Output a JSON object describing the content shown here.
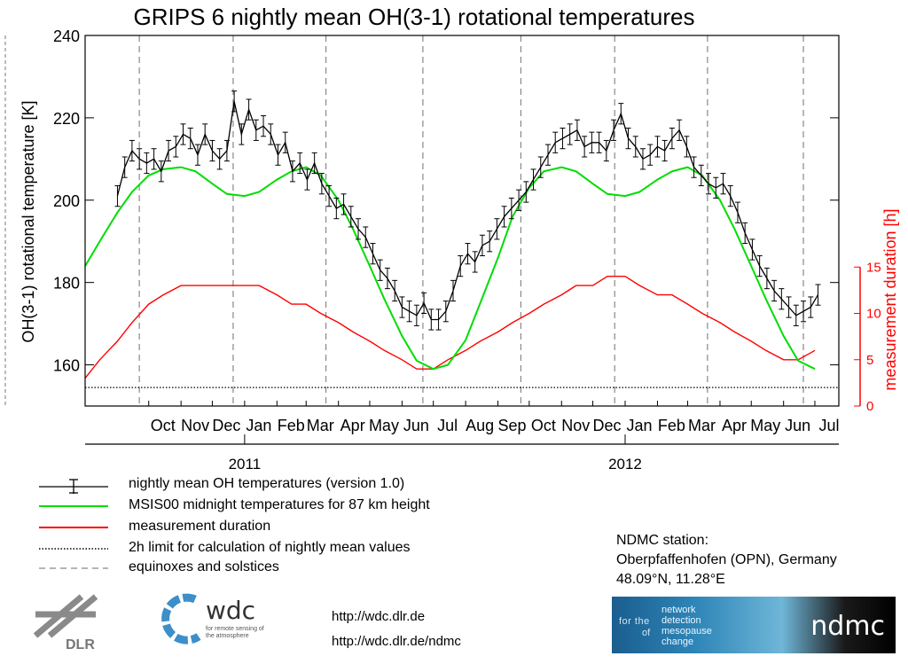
{
  "chart_data": {
    "type": "line",
    "title": "GRIPS 6 nightly mean OH(3-1) rotational temperatures",
    "ylabel_left": "OH(3-1) rotational temperature [K]",
    "ylabel_right": "measurement duration [h]",
    "ylim_left": [
      150,
      240
    ],
    "yticks_left": [
      "160",
      "180",
      "200",
      "220",
      "240"
    ],
    "ylim_right": [
      0,
      40
    ],
    "yticks_right": [
      "0",
      "5",
      "10",
      "15"
    ],
    "months": [
      "Oct",
      "Nov",
      "Dec",
      "Jan",
      "Feb",
      "Mar",
      "Apr",
      "May",
      "Jun",
      "Jul",
      "Aug",
      "Sep",
      "Oct",
      "Nov",
      "Dec",
      "Jan",
      "Feb",
      "Mar",
      "Apr",
      "May",
      "Jun",
      "Jul"
    ],
    "years": [
      "2011",
      "2012"
    ],
    "equinox_solstice_months": [
      "Sep",
      "Dec",
      "Mar",
      "Jun",
      "Sep",
      "Dec",
      "Mar",
      "Jun"
    ],
    "two_hour_limit": 2,
    "series": [
      {
        "name": "nightly mean OH temperatures (version 1.0)",
        "color": "#000000",
        "points": [
          [
            "2010-09-01",
            201
          ],
          [
            "2010-09-08",
            208
          ],
          [
            "2010-09-15",
            212
          ],
          [
            "2010-09-22",
            210
          ],
          [
            "2010-09-29",
            209
          ],
          [
            "2010-10-06",
            210
          ],
          [
            "2010-10-13",
            207
          ],
          [
            "2010-10-20",
            212
          ],
          [
            "2010-10-27",
            213
          ],
          [
            "2010-11-03",
            216
          ],
          [
            "2010-11-10",
            215
          ],
          [
            "2010-11-17",
            211
          ],
          [
            "2010-11-24",
            216
          ],
          [
            "2010-12-01",
            212
          ],
          [
            "2010-12-08",
            210
          ],
          [
            "2010-12-15",
            212
          ],
          [
            "2010-12-22",
            224
          ],
          [
            "2010-12-29",
            216
          ],
          [
            "2011-01-05",
            222
          ],
          [
            "2011-01-12",
            217
          ],
          [
            "2011-01-19",
            218
          ],
          [
            "2011-01-26",
            216
          ],
          [
            "2011-02-02",
            211
          ],
          [
            "2011-02-09",
            214
          ],
          [
            "2011-02-16",
            207
          ],
          [
            "2011-02-23",
            209
          ],
          [
            "2011-03-02",
            205
          ],
          [
            "2011-03-09",
            209
          ],
          [
            "2011-03-16",
            204
          ],
          [
            "2011-03-23",
            201
          ],
          [
            "2011-03-30",
            198
          ],
          [
            "2011-04-06",
            199
          ],
          [
            "2011-04-13",
            196
          ],
          [
            "2011-04-20",
            193
          ],
          [
            "2011-04-27",
            191
          ],
          [
            "2011-05-04",
            187
          ],
          [
            "2011-05-11",
            183
          ],
          [
            "2011-05-18",
            181
          ],
          [
            "2011-05-25",
            178
          ],
          [
            "2011-06-01",
            174
          ],
          [
            "2011-06-08",
            173
          ],
          [
            "2011-06-15",
            172
          ],
          [
            "2011-06-22",
            175
          ],
          [
            "2011-06-29",
            171
          ],
          [
            "2011-07-06",
            171
          ],
          [
            "2011-07-13",
            173
          ],
          [
            "2011-07-20",
            178
          ],
          [
            "2011-07-27",
            184
          ],
          [
            "2011-08-03",
            187
          ],
          [
            "2011-08-10",
            185
          ],
          [
            "2011-08-17",
            189
          ],
          [
            "2011-08-24",
            190
          ],
          [
            "2011-08-31",
            193
          ],
          [
            "2011-09-07",
            196
          ],
          [
            "2011-09-14",
            198
          ],
          [
            "2011-09-21",
            200
          ],
          [
            "2011-09-28",
            202
          ],
          [
            "2011-10-05",
            205
          ],
          [
            "2011-10-12",
            208
          ],
          [
            "2011-10-19",
            211
          ],
          [
            "2011-10-26",
            214
          ],
          [
            "2011-11-02",
            215
          ],
          [
            "2011-11-09",
            216
          ],
          [
            "2011-11-16",
            217
          ],
          [
            "2011-11-23",
            213
          ],
          [
            "2011-11-30",
            214
          ],
          [
            "2011-12-07",
            214
          ],
          [
            "2011-12-14",
            212
          ],
          [
            "2011-12-21",
            217
          ],
          [
            "2011-12-28",
            221
          ],
          [
            "2012-01-04",
            215
          ],
          [
            "2012-01-11",
            213
          ],
          [
            "2012-01-18",
            210
          ],
          [
            "2012-01-25",
            211
          ],
          [
            "2012-02-01",
            213
          ],
          [
            "2012-02-08",
            212
          ],
          [
            "2012-02-15",
            215
          ],
          [
            "2012-02-22",
            217
          ],
          [
            "2012-02-29",
            213
          ],
          [
            "2012-03-07",
            208
          ],
          [
            "2012-03-14",
            206
          ],
          [
            "2012-03-21",
            204
          ],
          [
            "2012-03-28",
            203
          ],
          [
            "2012-04-04",
            204
          ],
          [
            "2012-04-11",
            201
          ],
          [
            "2012-04-18",
            197
          ],
          [
            "2012-04-25",
            192
          ],
          [
            "2012-05-02",
            188
          ],
          [
            "2012-05-09",
            184
          ],
          [
            "2012-05-16",
            181
          ],
          [
            "2012-05-23",
            178
          ],
          [
            "2012-05-30",
            176
          ],
          [
            "2012-06-06",
            174
          ],
          [
            "2012-06-13",
            172
          ],
          [
            "2012-06-20",
            173
          ],
          [
            "2012-06-27",
            174
          ],
          [
            "2012-07-04",
            177
          ]
        ]
      },
      {
        "name": "MSIS00 midnight temperatures for 87 km height",
        "color": "#00dd00",
        "points": [
          [
            "2010-08-01",
            184
          ],
          [
            "2010-08-15",
            190
          ],
          [
            "2010-09-01",
            197
          ],
          [
            "2010-09-15",
            202
          ],
          [
            "2010-10-01",
            206
          ],
          [
            "2010-10-15",
            207.5
          ],
          [
            "2010-11-01",
            208
          ],
          [
            "2010-11-15",
            207
          ],
          [
            "2010-12-01",
            204
          ],
          [
            "2010-12-15",
            201.5
          ],
          [
            "2011-01-01",
            201
          ],
          [
            "2011-01-15",
            202
          ],
          [
            "2011-02-01",
            205
          ],
          [
            "2011-02-15",
            207
          ],
          [
            "2011-03-01",
            208
          ],
          [
            "2011-03-15",
            206
          ],
          [
            "2011-04-01",
            200
          ],
          [
            "2011-04-15",
            193
          ],
          [
            "2011-05-01",
            184
          ],
          [
            "2011-05-15",
            176
          ],
          [
            "2011-06-01",
            167
          ],
          [
            "2011-06-15",
            161
          ],
          [
            "2011-07-01",
            159
          ],
          [
            "2011-07-15",
            160
          ],
          [
            "2011-08-01",
            166
          ],
          [
            "2011-08-15",
            175
          ],
          [
            "2011-09-01",
            186
          ],
          [
            "2011-09-15",
            196
          ],
          [
            "2011-10-01",
            203
          ],
          [
            "2011-10-15",
            207
          ],
          [
            "2011-11-01",
            208
          ],
          [
            "2011-11-15",
            207
          ],
          [
            "2011-12-01",
            204
          ],
          [
            "2011-12-15",
            201.5
          ],
          [
            "2012-01-01",
            201
          ],
          [
            "2012-01-15",
            202
          ],
          [
            "2012-02-01",
            205
          ],
          [
            "2012-02-15",
            207
          ],
          [
            "2012-03-01",
            208
          ],
          [
            "2012-03-15",
            206
          ],
          [
            "2012-04-01",
            200
          ],
          [
            "2012-04-15",
            193
          ],
          [
            "2012-05-01",
            184
          ],
          [
            "2012-05-15",
            176
          ],
          [
            "2012-06-01",
            167
          ],
          [
            "2012-06-15",
            161
          ],
          [
            "2012-07-01",
            159
          ]
        ]
      },
      {
        "name": "measurement duration",
        "color": "#ff0000",
        "axis": "right",
        "points": [
          [
            "2010-08-01",
            3
          ],
          [
            "2010-08-15",
            5
          ],
          [
            "2010-09-01",
            7
          ],
          [
            "2010-09-15",
            9
          ],
          [
            "2010-10-01",
            11
          ],
          [
            "2010-10-15",
            12
          ],
          [
            "2010-11-01",
            13
          ],
          [
            "2010-11-15",
            13
          ],
          [
            "2010-12-01",
            13
          ],
          [
            "2010-12-15",
            13
          ],
          [
            "2011-01-01",
            13
          ],
          [
            "2011-01-15",
            13
          ],
          [
            "2011-02-01",
            12
          ],
          [
            "2011-02-15",
            11
          ],
          [
            "2011-03-01",
            11
          ],
          [
            "2011-03-15",
            10
          ],
          [
            "2011-04-01",
            9
          ],
          [
            "2011-04-15",
            8
          ],
          [
            "2011-05-01",
            7
          ],
          [
            "2011-05-15",
            6
          ],
          [
            "2011-06-01",
            5
          ],
          [
            "2011-06-15",
            4
          ],
          [
            "2011-07-01",
            4
          ],
          [
            "2011-07-15",
            5
          ],
          [
            "2011-08-01",
            6
          ],
          [
            "2011-08-15",
            7
          ],
          [
            "2011-09-01",
            8
          ],
          [
            "2011-09-15",
            9
          ],
          [
            "2011-10-01",
            10
          ],
          [
            "2011-10-15",
            11
          ],
          [
            "2011-11-01",
            12
          ],
          [
            "2011-11-15",
            13
          ],
          [
            "2011-12-01",
            13
          ],
          [
            "2011-12-15",
            14
          ],
          [
            "2012-01-01",
            14
          ],
          [
            "2012-01-15",
            13
          ],
          [
            "2012-02-01",
            12
          ],
          [
            "2012-02-15",
            12
          ],
          [
            "2012-03-01",
            11
          ],
          [
            "2012-03-15",
            10
          ],
          [
            "2012-04-01",
            9
          ],
          [
            "2012-04-15",
            8
          ],
          [
            "2012-05-01",
            7
          ],
          [
            "2012-05-15",
            6
          ],
          [
            "2012-06-01",
            5
          ],
          [
            "2012-06-15",
            5
          ],
          [
            "2012-07-01",
            6
          ]
        ]
      }
    ]
  },
  "legend": [
    {
      "label": "nightly mean OH temperatures (version 1.0)",
      "style": "errorbar",
      "color": "#000000"
    },
    {
      "label": "MSIS00 midnight temperatures for 87 km height",
      "style": "solid",
      "color": "#00dd00"
    },
    {
      "label": "measurement duration",
      "style": "solid",
      "color": "#ff0000"
    },
    {
      "label": "2h limit for calculation of nightly mean values",
      "style": "dotted",
      "color": "#000000"
    },
    {
      "label": "equinoxes and solstices",
      "style": "dashed",
      "color": "#888888"
    }
  ],
  "station": {
    "line1": "NDMC station:",
    "line2": "Oberpfaffenhofen (OPN), Germany",
    "line3": "48.09°N, 11.28°E"
  },
  "links": [
    "http://wdc.dlr.de",
    "http://wdc.dlr.de/ndmc"
  ],
  "logos": {
    "dlr": "DLR",
    "wdc": "wdc",
    "wdc_sub": "for remote sensing of the atmosphere",
    "ndmc_brand": "ndmc",
    "ndmc_for_the": "for the",
    "ndmc_of": "of",
    "ndmc_terms": [
      "network",
      "detection",
      "mesopause",
      "change"
    ]
  }
}
